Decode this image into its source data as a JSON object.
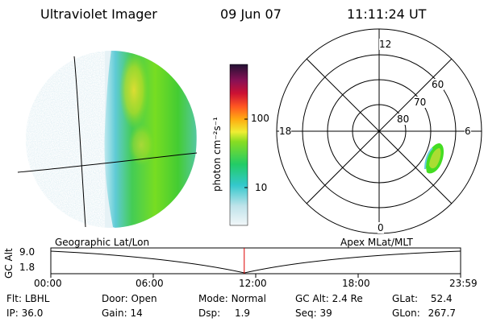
{
  "header": {
    "instrument": "Ultraviolet Imager",
    "date": "09 Jun 07",
    "time": "11:11:24 UT"
  },
  "colorbar": {
    "unit_label": "photon cm⁻²s⁻¹",
    "ticks": [
      "100",
      "10"
    ]
  },
  "polar_plot": {
    "mlt_labels": {
      "top": "12",
      "left": "18",
      "right": "6",
      "bottom": "0"
    },
    "lat_labels": [
      "60",
      "70",
      "80"
    ]
  },
  "timeline": {
    "y_label": "GC Alt",
    "y_ticks": [
      "9.0",
      "1.8"
    ],
    "left_title": "Geographic Lat/Lon",
    "right_title": "Apex MLat/MLT",
    "x_ticks": [
      "00:00",
      "06:00",
      "12:00",
      "18:00",
      "23:59"
    ],
    "current_marker_fraction": 0.472
  },
  "info": {
    "filter": {
      "label": "Flt:",
      "value": "LBHL"
    },
    "ip": {
      "label": "IP:",
      "value": "36.0"
    },
    "door": {
      "label": "Door:",
      "value": "Open"
    },
    "gain": {
      "label": "Gain:",
      "value": "14"
    },
    "mode": {
      "label": "Mode:",
      "value": "Normal"
    },
    "dsp": {
      "label": "Dsp:",
      "value": "1.9"
    },
    "gc_alt": {
      "label": "GC Alt:",
      "value": "2.4 Re"
    },
    "seq": {
      "label": "Seq:",
      "value": "39"
    },
    "glat": {
      "label": "GLat:",
      "value": "52.4"
    },
    "glon": {
      "label": "GLon:",
      "value": "267.7"
    }
  },
  "colors": {
    "aurora_green": "#44dd22",
    "aurora_yellow": "#eeee33",
    "aurora_cyan": "#66ccdd",
    "marker_red": "#dd0000"
  }
}
